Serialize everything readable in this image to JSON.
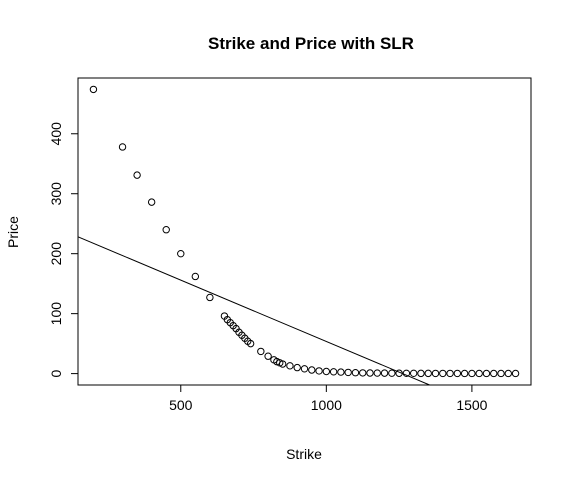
{
  "chart_data": {
    "type": "scatter",
    "title": "Strike and Price with SLR",
    "xlabel": "Strike",
    "ylabel": "Price",
    "xlim": [
      147,
      1703
    ],
    "ylim": [
      -19,
      493
    ],
    "xticks": [
      500,
      1000,
      1500
    ],
    "yticks": [
      0,
      100,
      200,
      300,
      400
    ],
    "grid": false,
    "legend": "none",
    "points": [
      [
        200,
        474
      ],
      [
        300,
        378
      ],
      [
        350,
        331
      ],
      [
        400,
        286
      ],
      [
        450,
        240
      ],
      [
        500,
        200
      ],
      [
        550,
        162
      ],
      [
        600,
        127
      ],
      [
        650,
        96
      ],
      [
        660,
        90
      ],
      [
        670,
        85
      ],
      [
        680,
        80
      ],
      [
        690,
        75
      ],
      [
        700,
        69
      ],
      [
        710,
        64
      ],
      [
        720,
        59
      ],
      [
        730,
        54
      ],
      [
        740,
        50
      ],
      [
        775,
        37
      ],
      [
        800,
        29
      ],
      [
        820,
        23
      ],
      [
        830,
        20
      ],
      [
        840,
        18
      ],
      [
        850,
        16
      ],
      [
        875,
        13
      ],
      [
        900,
        10
      ],
      [
        925,
        8
      ],
      [
        950,
        6
      ],
      [
        975,
        4.5
      ],
      [
        1000,
        3.5
      ],
      [
        1025,
        3
      ],
      [
        1050,
        2.5
      ],
      [
        1075,
        2
      ],
      [
        1100,
        1.5
      ],
      [
        1125,
        1.2
      ],
      [
        1150,
        1
      ],
      [
        1175,
        0.9
      ],
      [
        1200,
        0.8
      ],
      [
        1225,
        0.7
      ],
      [
        1250,
        0.6
      ],
      [
        1275,
        0.5
      ],
      [
        1300,
        0.5
      ],
      [
        1325,
        0.4
      ],
      [
        1350,
        0.4
      ],
      [
        1375,
        0.3
      ],
      [
        1400,
        0.3
      ],
      [
        1425,
        0.3
      ],
      [
        1450,
        0.3
      ],
      [
        1475,
        0.2
      ],
      [
        1500,
        0.2
      ],
      [
        1525,
        0.2
      ],
      [
        1550,
        0.2
      ],
      [
        1575,
        0.2
      ],
      [
        1600,
        0.2
      ],
      [
        1625,
        0.2
      ],
      [
        1650,
        0.2
      ]
    ],
    "regression_line": {
      "intercept": 258.2,
      "slope": -0.2046
    }
  }
}
